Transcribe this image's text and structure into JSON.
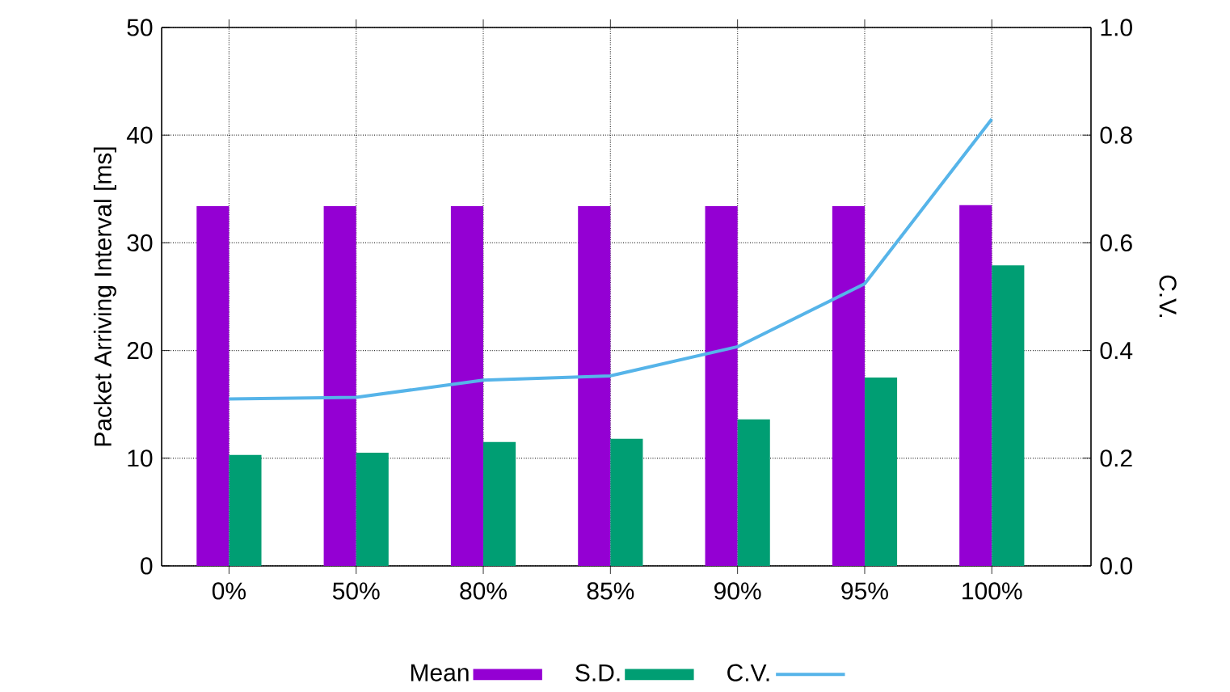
{
  "chart_data": {
    "type": "bar",
    "ylabel": "Packet Arriving Interval [ms]",
    "y2label": "C.V.",
    "categories": [
      "0%",
      "50%",
      "80%",
      "85%",
      "90%",
      "95%",
      "100%"
    ],
    "series": [
      {
        "name": "Mean",
        "color": "#9400d3",
        "values": [
          33.4,
          33.4,
          33.4,
          33.4,
          33.4,
          33.4,
          33.5
        ]
      },
      {
        "name": "S.D.",
        "color": "#009e73",
        "values": [
          10.3,
          10.5,
          11.5,
          11.8,
          13.6,
          17.5,
          27.9
        ]
      },
      {
        "name": "C.V.",
        "type": "line",
        "axis": "y2",
        "color": "#56b4e9",
        "values": [
          0.31,
          0.313,
          0.345,
          0.353,
          0.407,
          0.524,
          0.83
        ]
      }
    ],
    "ylim": [
      0,
      50
    ],
    "yticks": [
      0,
      10,
      20,
      30,
      40,
      50
    ],
    "y2lim": [
      0,
      1
    ],
    "y2ticks": [
      {
        "value": 0,
        "label": "0.0"
      },
      {
        "value": 0.2,
        "label": "0.2"
      },
      {
        "value": 0.4,
        "label": "0.4"
      },
      {
        "value": 0.6,
        "label": "0.6"
      },
      {
        "value": 0.8,
        "label": "0.8"
      },
      {
        "value": 1,
        "label": "1.0"
      }
    ],
    "grid": true,
    "legend": "bottom"
  }
}
